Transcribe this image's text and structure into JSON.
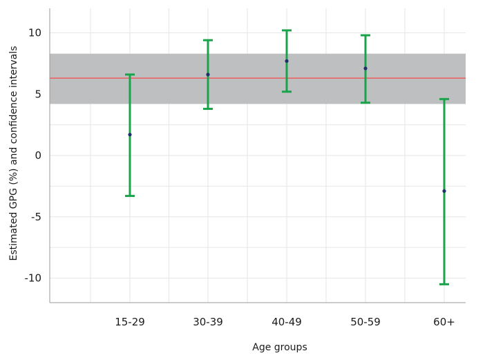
{
  "chart_data": {
    "type": "scatter",
    "title": "",
    "xlabel": "Age groups",
    "ylabel": "Estimated GPG (%) and confidence intervals",
    "categories": [
      "15-29",
      "30-39",
      "40-49",
      "50-59",
      "60+"
    ],
    "estimates": [
      1.7,
      6.6,
      7.7,
      7.1,
      -2.9
    ],
    "ci_lower": [
      -3.3,
      3.8,
      5.2,
      4.3,
      -10.5
    ],
    "ci_upper": [
      6.6,
      9.4,
      10.2,
      9.8,
      4.6
    ],
    "reference_line": 6.3,
    "reference_band": [
      4.2,
      8.3
    ],
    "ylim": [
      -12,
      12
    ],
    "y_ticks": [
      -10,
      -5,
      0,
      5,
      10
    ],
    "grid": true,
    "colors": {
      "interval": "#1aa34a",
      "point": "#1f2f6b",
      "reference_line": "#ef5b5b",
      "band": "#bdbfc0",
      "grid": "#e6e6e6",
      "axis": "#9a9a9a"
    }
  }
}
